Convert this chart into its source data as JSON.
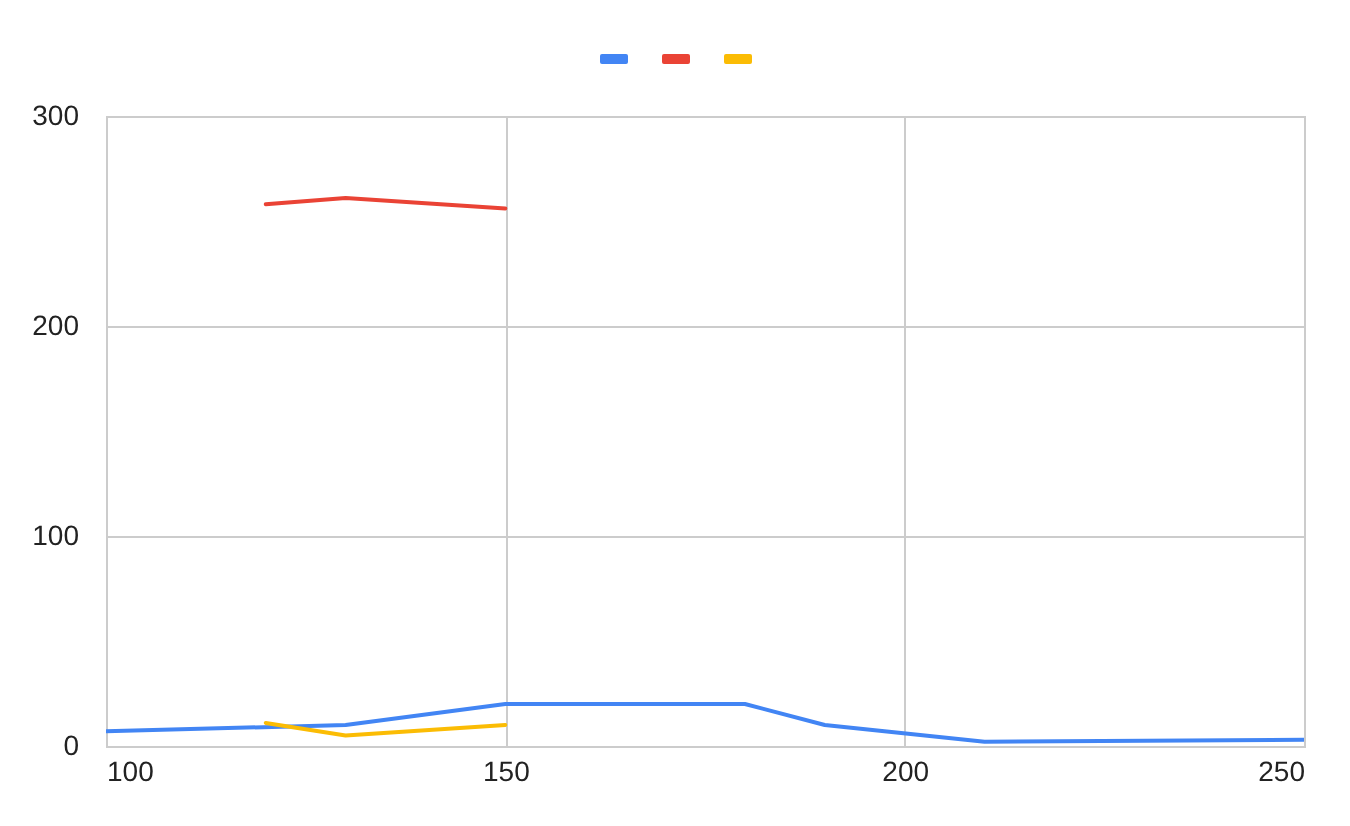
{
  "chart_data": {
    "type": "line",
    "xlim": [
      100,
      250
    ],
    "xticks": [
      100,
      150,
      200,
      250
    ],
    "ylim": [
      0,
      300
    ],
    "yticks": [
      0,
      100,
      200,
      300
    ],
    "grid": true,
    "marker": "none",
    "line_style": "solid",
    "series": [
      {
        "color": "#4285f4",
        "x": [
          100,
          130,
          150,
          180,
          190,
          210,
          250
        ],
        "values": [
          7,
          10,
          20,
          20,
          10,
          2,
          3
        ]
      },
      {
        "color": "#ea4335",
        "x": [
          120,
          130,
          150
        ],
        "values": [
          258,
          261,
          256
        ]
      },
      {
        "color": "#fbbc04",
        "x": [
          120,
          130,
          150
        ],
        "values": [
          11,
          5,
          10
        ]
      }
    ]
  }
}
